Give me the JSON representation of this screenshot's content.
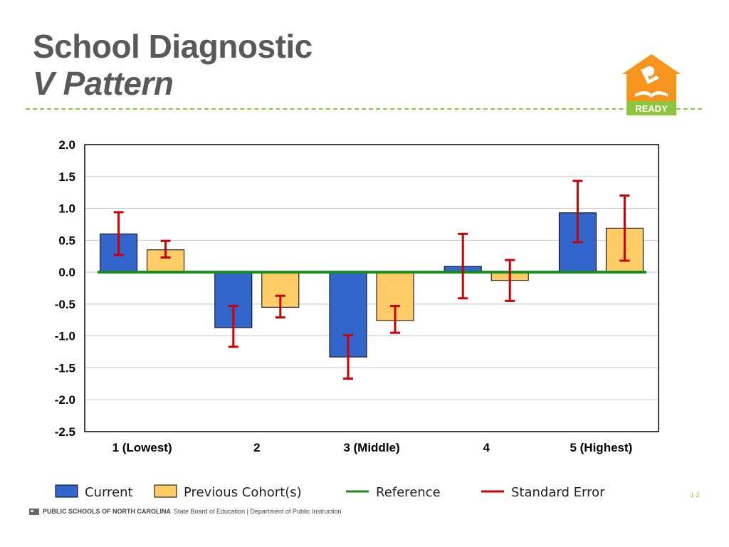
{
  "slide": {
    "title_line1": "School Diagnostic",
    "title_line2": "V Pattern",
    "logo_text": "READY",
    "footer_brand": "PUBLIC SCHOOLS OF NORTH CAROLINA",
    "footer_rest": "State Board of Education | Department of Public Instruction",
    "page_mark": "1 2"
  },
  "colors": {
    "current": "#3366cc",
    "previous": "#ffcc66",
    "reference": "#1a8a1a",
    "error": "#cc0000",
    "grid": "#c8c8c8",
    "accent": "#8cc63f",
    "logo": "#f7941d"
  },
  "chart_data": {
    "type": "bar",
    "categories": [
      "1 (Lowest)",
      "2",
      "3 (Middle)",
      "4",
      "5 (Highest)"
    ],
    "ylim": [
      -2.5,
      2.0
    ],
    "yticks": [
      "2.0",
      "1.5",
      "1.0",
      "0.5",
      "0.0",
      "-0.5",
      "-1.0",
      "-1.5",
      "-2.0",
      "-2.5"
    ],
    "grid": true,
    "legend_position": "bottom",
    "series": [
      {
        "name": "Current",
        "values": [
          0.6,
          -0.87,
          -1.33,
          0.09,
          0.93
        ],
        "error_low": [
          0.27,
          -1.17,
          -1.67,
          -0.41,
          0.47
        ],
        "error_high": [
          0.94,
          -0.53,
          -0.99,
          0.6,
          1.43
        ]
      },
      {
        "name": "Previous Cohort(s)",
        "values": [
          0.35,
          -0.55,
          -0.76,
          -0.13,
          0.69
        ],
        "error_low": [
          0.23,
          -0.71,
          -0.95,
          -0.45,
          0.18
        ],
        "error_high": [
          0.49,
          -0.37,
          -0.53,
          0.19,
          1.2
        ]
      }
    ],
    "reference_value": 0.0,
    "legend": [
      "Current",
      "Previous Cohort(s)",
      "Reference",
      "Standard Error"
    ]
  }
}
